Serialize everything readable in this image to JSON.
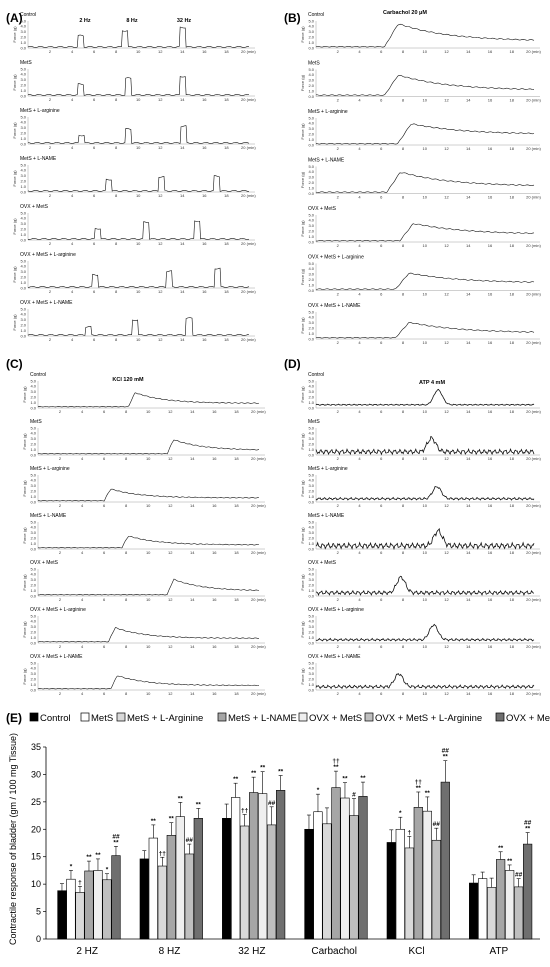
{
  "panels": [
    {
      "letter": "(A)",
      "annotations": [
        "2 Hz",
        "8 Hz",
        "32 Hz"
      ],
      "labels": [
        "Control",
        "MetS",
        "MetS + L-arginine",
        "MetS + L-NAME",
        "OVX + MetS",
        "OVX + MetS + L-arginine",
        "OVX + MetS + L-NAME"
      ]
    },
    {
      "letter": "(B)",
      "annotations": [
        "Carbachol 20 μM"
      ],
      "labels": [
        "Control",
        "MetS",
        "MetS + L-arginine",
        "MetS + L-NAME",
        "OVX + MetS",
        "OVX + MetS + L-arginine",
        "OVX + MetS + L-NAME"
      ]
    },
    {
      "letter": "(C)",
      "annotations": [
        "KCl 120 mM"
      ],
      "labels": [
        "Control",
        "MetS",
        "MetS + L-arginine",
        "MetS + L-NAME",
        "OVX + MetS",
        "OVX + MetS + L-arginine",
        "OVX + MetS + L-NAME"
      ]
    },
    {
      "letter": "(D)",
      "annotations": [
        "ATP 4 mM"
      ],
      "labels": [
        "Control",
        "MetS",
        "MetS + L-arginine",
        "MetS + L-NAME",
        "OVX + MetS",
        "OVX + MetS + L-arginine",
        "OVX + MetS + L-NAME"
      ]
    }
  ],
  "trace_axis": {
    "ylabel": "Force (g)",
    "yticks": [
      "5.0",
      "4.0",
      "3.0",
      "2.0",
      "1.0",
      "0.0"
    ],
    "xticks": [
      "2",
      "4",
      "6",
      "8",
      "10",
      "12",
      "14",
      "16",
      "18",
      "20 (min)"
    ]
  },
  "chart_data": {
    "type": "bar",
    "panel_letter": "(E)",
    "ylabel": "Contractile response of bladder (gm / 100 mg Tissue)",
    "ylim": [
      0,
      35
    ],
    "yticks": [
      "0",
      "5",
      "10",
      "15",
      "20",
      "25",
      "30",
      "35"
    ],
    "categories": [
      "2 HZ",
      "8 HZ",
      "32 HZ",
      "Carbachol",
      "KCl",
      "ATP"
    ],
    "series": [
      {
        "name": "Control",
        "color": "#000000",
        "values": [
          8.8,
          14.6,
          22.0,
          20.0,
          17.6,
          10.2
        ],
        "errors": [
          1.3,
          1.5,
          2.6,
          2.6,
          2.3,
          1.5
        ],
        "sig": [
          "",
          "",
          "",
          "",
          "",
          ""
        ]
      },
      {
        "name": "MetS",
        "color": "#ffffff",
        "values": [
          10.9,
          18.4,
          25.8,
          23.2,
          20.0,
          11.0
        ],
        "errors": [
          1.6,
          2.4,
          2.6,
          3.2,
          2.2,
          1.2
        ],
        "sig": [
          "*",
          "**",
          "**",
          "*",
          "*",
          ""
        ]
      },
      {
        "name": "MetS + L-Arginine",
        "color": "#d9d9d9",
        "values": [
          8.5,
          13.3,
          20.6,
          21.0,
          16.6,
          9.4
        ],
        "errors": [
          1.1,
          1.6,
          2.1,
          2.9,
          2.1,
          1.7
        ],
        "sig": [
          "†",
          "††",
          "††",
          "",
          "†",
          ""
        ]
      },
      {
        "name": "MetS + L-NAME",
        "color": "#a6a6a6",
        "values": [
          12.4,
          18.9,
          26.7,
          27.6,
          24.0,
          14.5
        ],
        "errors": [
          1.8,
          2.3,
          2.8,
          3.0,
          2.8,
          1.4
        ],
        "sig": [
          "**",
          "**",
          "**",
          "††\n**",
          "††\n**",
          "**"
        ]
      },
      {
        "name": "OVX + MetS",
        "color": "#efefef",
        "values": [
          12.5,
          22.3,
          26.5,
          25.7,
          23.3,
          12.5
        ],
        "errors": [
          2.1,
          2.6,
          4.0,
          2.8,
          2.6,
          1.0
        ],
        "sig": [
          "**",
          "**",
          "**",
          "**",
          "**",
          "**"
        ]
      },
      {
        "name": "OVX + MetS + L-Arginine",
        "color": "#bfbfbf",
        "values": [
          10.8,
          15.5,
          20.8,
          22.5,
          18.0,
          9.5
        ],
        "errors": [
          1.1,
          1.8,
          3.3,
          3.1,
          2.2,
          1.5
        ],
        "sig": [
          "*",
          "##",
          "##",
          "#",
          "##",
          "##"
        ]
      },
      {
        "name": "OVX + MetS + L-NAME",
        "color": "#6f6f6f",
        "values": [
          15.2,
          22.0,
          27.1,
          26.0,
          28.6,
          17.3
        ],
        "errors": [
          1.7,
          1.8,
          2.7,
          2.6,
          3.9,
          2.1
        ],
        "sig": [
          "##\n**",
          "**",
          "**",
          "**",
          "##\n**",
          "##\n**"
        ]
      }
    ]
  }
}
